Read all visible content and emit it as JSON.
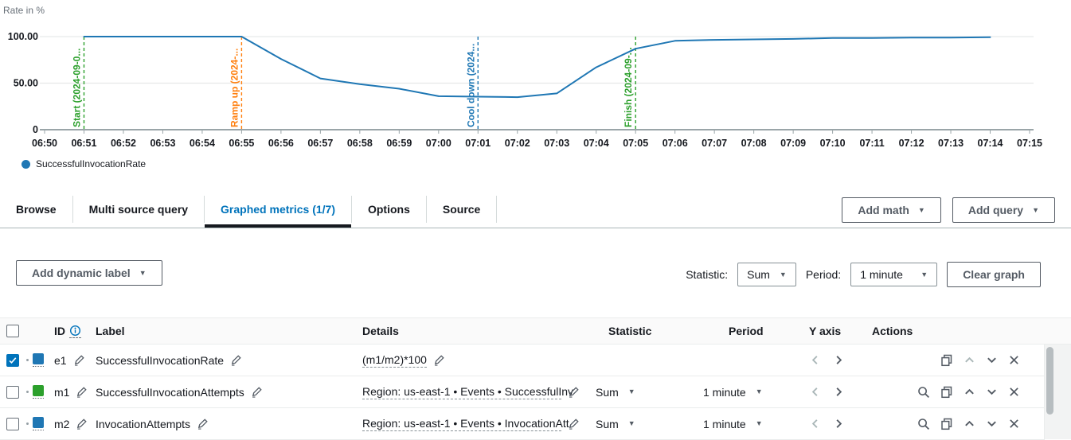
{
  "chart_data": {
    "type": "line",
    "title": "",
    "xlabel": "",
    "ylabel": "Rate in %",
    "ylim": [
      0,
      100
    ],
    "grid": true,
    "legend_position": "bottom-left",
    "y_ticks": [
      {
        "v": 100,
        "label": "100.00"
      },
      {
        "v": 50,
        "label": "50.00"
      },
      {
        "v": 0,
        "label": "0"
      }
    ],
    "x_ticks": [
      "06:50",
      "06:51",
      "06:52",
      "06:53",
      "06:54",
      "06:55",
      "06:56",
      "06:57",
      "06:58",
      "06:59",
      "07:00",
      "07:01",
      "07:02",
      "07:03",
      "07:04",
      "07:05",
      "07:06",
      "07:07",
      "07:08",
      "07:09",
      "07:10",
      "07:11",
      "07:12",
      "07:13",
      "07:14",
      "07:15"
    ],
    "series": [
      {
        "name": "SuccessfulInvocationRate",
        "color": "#1f77b4",
        "x": [
          "06:51",
          "06:52",
          "06:53",
          "06:54",
          "06:55",
          "06:56",
          "06:57",
          "06:58",
          "06:59",
          "07:00",
          "07:01",
          "07:02",
          "07:03",
          "07:04",
          "07:05",
          "07:06",
          "07:07",
          "07:08",
          "07:09",
          "07:10",
          "07:11",
          "07:12",
          "07:13",
          "07:14"
        ],
        "values": [
          100,
          100,
          100,
          100,
          100,
          76,
          55,
          49,
          44,
          36,
          35.5,
          35,
          39,
          67,
          87,
          95.5,
          96.5,
          97,
          97.5,
          98.5,
          98.5,
          99,
          99,
          99.3
        ]
      }
    ],
    "annotations": [
      {
        "label": "Start (2024-09-0...",
        "time": "06:51",
        "color": "#2ca02c"
      },
      {
        "label": "Ramp up (2024-...",
        "time": "06:55",
        "color": "#ff7f0e"
      },
      {
        "label": "Cool down (2024...",
        "time": "07:01",
        "color": "#1f77b4"
      },
      {
        "label": "Finish (2024-09-...",
        "time": "07:05",
        "color": "#2ca02c"
      }
    ]
  },
  "tabs": {
    "items": [
      {
        "label": "Browse",
        "active": false
      },
      {
        "label": "Multi source query",
        "active": false
      },
      {
        "label": "Graphed metrics (1/7)",
        "active": true
      },
      {
        "label": "Options",
        "active": false
      },
      {
        "label": "Source",
        "active": false
      }
    ]
  },
  "toolbar": {
    "add_math": "Add math",
    "add_query": "Add query",
    "add_dynamic_label": "Add dynamic label",
    "statistic_label": "Statistic:",
    "statistic_value": "Sum",
    "period_label": "Period:",
    "period_value": "1 minute",
    "clear_graph": "Clear graph"
  },
  "table": {
    "headers": {
      "id": "ID",
      "label": "Label",
      "details": "Details",
      "statistic": "Statistic",
      "period": "Period",
      "y_axis": "Y axis",
      "actions": "Actions"
    },
    "rows": [
      {
        "id": "e1",
        "checked": true,
        "color": "#1f77b4",
        "label": "SuccessfulInvocationRate",
        "details": "(m1/m2)*100",
        "statistic": "",
        "period": "",
        "has_search": false,
        "up_disabled": true
      },
      {
        "id": "m1",
        "checked": false,
        "color": "#2ca02c",
        "label": "SuccessfulInvocationAttempts",
        "details": "Region: us-east-1 • Events • SuccessfulInv",
        "statistic": "Sum",
        "period": "1 minute",
        "has_search": true,
        "up_disabled": false
      },
      {
        "id": "m2",
        "checked": false,
        "color": "#1f77b4",
        "label": "InvocationAttempts",
        "details": "Region: us-east-1 • Events • InvocationAtt",
        "statistic": "Sum",
        "period": "1 minute",
        "has_search": true,
        "up_disabled": false
      }
    ]
  },
  "colors": {
    "accent_blue": "#0073bb",
    "line_blue": "#1f77b4",
    "green": "#2ca02c",
    "orange": "#ff7f0e"
  }
}
